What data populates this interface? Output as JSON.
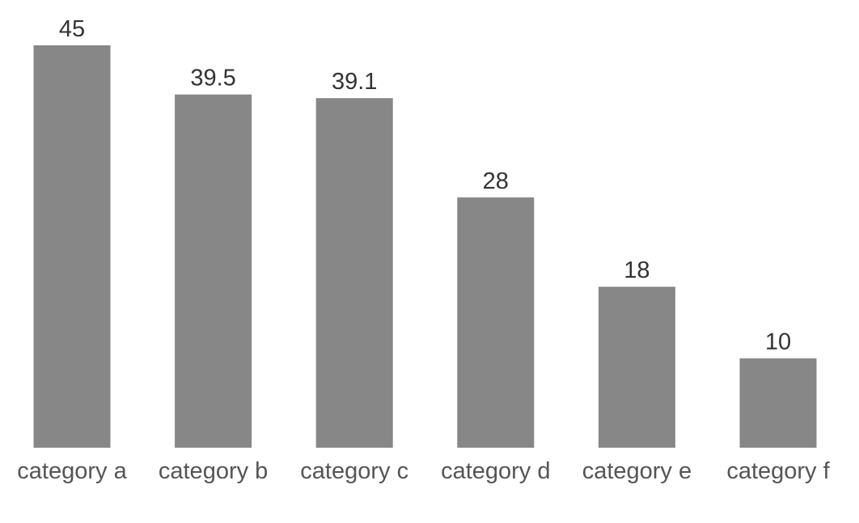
{
  "chart_data": {
    "type": "bar",
    "categories": [
      "category a",
      "category b",
      "category c",
      "category d",
      "category e",
      "category f"
    ],
    "values": [
      45,
      39.5,
      39.1,
      28,
      18,
      10
    ],
    "value_labels": [
      "45",
      "39.5",
      "39.1",
      "28",
      "18",
      "10"
    ],
    "title": "",
    "xlabel": "",
    "ylabel": "",
    "ylim": [
      0,
      45
    ],
    "grid": false,
    "legend": "none",
    "colors": {
      "bar": "#878787",
      "value_label": "#333333",
      "category_label": "#555555"
    }
  }
}
